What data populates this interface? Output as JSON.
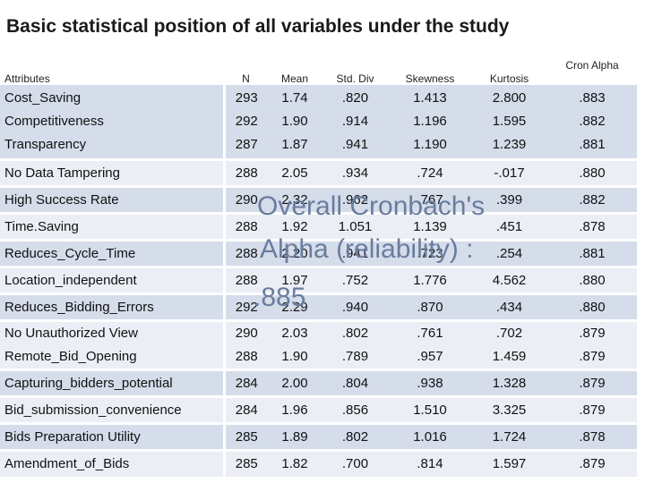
{
  "title": "Basic statistical position of all variables under the study",
  "columns": [
    "Attributes",
    "N",
    "Mean",
    "Std. Div",
    "Skewness",
    "Kurtosis",
    "Cron Alpha"
  ],
  "rows": [
    {
      "attributes": [
        "Cost_Saving",
        "Competitiveness",
        "Transparency"
      ],
      "n": [
        "293",
        "292",
        "287"
      ],
      "mean": [
        "1.74",
        "1.90",
        "1.87"
      ],
      "std": [
        ".820",
        ".914",
        ".941"
      ],
      "skew": [
        "1.413",
        "1.196",
        "1.190"
      ],
      "kurt": [
        "2.800",
        "1.595",
        "1.239"
      ],
      "cron": [
        ".883",
        ".882",
        ".881"
      ]
    },
    {
      "attributes": [
        "No Data Tampering"
      ],
      "n": [
        "288"
      ],
      "mean": [
        "2.05"
      ],
      "std": [
        ".934"
      ],
      "skew": [
        ".724"
      ],
      "kurt": [
        "-.017"
      ],
      "cron": [
        ".880"
      ]
    },
    {
      "attributes": [
        "High Success Rate"
      ],
      "n": [
        "290"
      ],
      "mean": [
        "2.32"
      ],
      "std": [
        ".962"
      ],
      "skew": [
        ".767"
      ],
      "kurt": [
        ".399"
      ],
      "cron": [
        ".882"
      ]
    },
    {
      "attributes": [
        "Time.Saving"
      ],
      "n": [
        "288"
      ],
      "mean": [
        "1.92"
      ],
      "std": [
        "1.051"
      ],
      "skew": [
        "1.139"
      ],
      "kurt": [
        ".451"
      ],
      "cron": [
        ".878"
      ]
    },
    {
      "attributes": [
        "Reduces_Cycle_Time"
      ],
      "n": [
        "288"
      ],
      "mean": [
        "2.20"
      ],
      "std": [
        ".941"
      ],
      "skew": [
        ".723"
      ],
      "kurt": [
        ".254"
      ],
      "cron": [
        ".881"
      ]
    },
    {
      "attributes": [
        "Location_independent"
      ],
      "n": [
        "288"
      ],
      "mean": [
        "1.97"
      ],
      "std": [
        ".752"
      ],
      "skew": [
        "1.776"
      ],
      "kurt": [
        "4.562"
      ],
      "cron": [
        ".880"
      ]
    },
    {
      "attributes": [
        "Reduces_Bidding_Errors"
      ],
      "n": [
        "292"
      ],
      "mean": [
        "2.29"
      ],
      "std": [
        ".940"
      ],
      "skew": [
        ".870"
      ],
      "kurt": [
        ".434"
      ],
      "cron": [
        ".880"
      ]
    },
    {
      "attributes": [
        "No Unauthorized View",
        "Remote_Bid_Opening"
      ],
      "n": [
        "290",
        "288"
      ],
      "mean": [
        "2.03",
        "1.90"
      ],
      "std": [
        ".802",
        ".789"
      ],
      "skew": [
        ".761",
        ".957"
      ],
      "kurt": [
        ".702",
        "1.459"
      ],
      "cron": [
        ".879",
        ".879"
      ]
    },
    {
      "attributes": [
        "Capturing_bidders_potential"
      ],
      "n": [
        "284"
      ],
      "mean": [
        "2.00"
      ],
      "std": [
        ".804"
      ],
      "skew": [
        ".938"
      ],
      "kurt": [
        "1.328"
      ],
      "cron": [
        ".879"
      ]
    },
    {
      "attributes": [
        "Bid_submission_convenience"
      ],
      "n": [
        "284"
      ],
      "mean": [
        "1.96"
      ],
      "std": [
        ".856"
      ],
      "skew": [
        "1.510"
      ],
      "kurt": [
        "3.325"
      ],
      "cron": [
        ".879"
      ]
    },
    {
      "attributes": [
        "Bids Preparation Utility"
      ],
      "n": [
        "285"
      ],
      "mean": [
        "1.89"
      ],
      "std": [
        ".802"
      ],
      "skew": [
        "1.016"
      ],
      "kurt": [
        "1.724"
      ],
      "cron": [
        ".878"
      ]
    },
    {
      "attributes": [
        "Amendment_of_Bids"
      ],
      "n": [
        "285"
      ],
      "mean": [
        "1.82"
      ],
      "std": [
        ".700"
      ],
      "skew": [
        ".814"
      ],
      "kurt": [
        "1.597"
      ],
      "cron": [
        ".879"
      ]
    }
  ],
  "overlay": {
    "line1": "Overall Cronbach's",
    "line2": "Alpha (reliability) :",
    "line3": ".885"
  },
  "colors": {
    "band_dark": "#d5dcea",
    "band_light": "#ebeef5",
    "overlay_text": "#6a7d9e"
  }
}
